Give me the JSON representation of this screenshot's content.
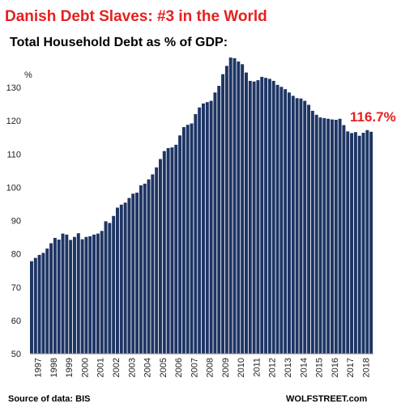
{
  "chart_data": {
    "type": "bar",
    "title": "Danish Debt Slaves: #3 in the World",
    "subtitle": "Total Household Debt as % of GDP:",
    "ylabel": "%",
    "ylim": [
      50,
      140
    ],
    "yticks": [
      50,
      60,
      70,
      80,
      90,
      100,
      110,
      120,
      130
    ],
    "year_labels": [
      "1997",
      "1998",
      "1999",
      "2000",
      "2001",
      "2002",
      "2003",
      "2004",
      "2005",
      "2006",
      "2007",
      "2008",
      "2009",
      "2010",
      "2011",
      "2012",
      "2013",
      "2014",
      "2015",
      "2016",
      "2017",
      "2018"
    ],
    "frequency": "quarterly",
    "first_period": "1997-Q1",
    "last_period": "2018-Q3",
    "values": [
      77.8,
      78.8,
      79.7,
      80.3,
      81.6,
      83.2,
      84.8,
      84.3,
      86.1,
      85.8,
      84.2,
      85.1,
      86.2,
      84.4,
      85.1,
      85.3,
      85.8,
      86.1,
      86.9,
      89.8,
      89.3,
      91.4,
      93.9,
      94.8,
      95.4,
      96.8,
      98.1,
      98.4,
      100.6,
      101.1,
      102.4,
      103.9,
      106.0,
      108.5,
      110.9,
      111.8,
      112.0,
      112.8,
      115.6,
      118.1,
      118.8,
      119.2,
      122.0,
      124.0,
      125.2,
      125.6,
      126.0,
      128.5,
      130.5,
      134.0,
      136.5,
      139.0,
      138.8,
      137.8,
      137.0,
      134.5,
      132.0,
      131.8,
      132.2,
      133.2,
      132.9,
      132.6,
      132.0,
      130.8,
      130.2,
      129.5,
      128.5,
      127.5,
      126.8,
      126.7,
      126.0,
      124.8,
      123.0,
      121.8,
      121.0,
      120.8,
      120.6,
      120.4,
      120.3,
      120.6,
      118.7,
      116.8,
      116.3,
      116.6,
      115.5,
      116.4,
      117.2,
      116.7
    ],
    "annotation": "116.7%",
    "bar_color": "#1e3564",
    "annotation_color": "#e62020",
    "title_color": "#e62020",
    "grid": false
  },
  "footer": {
    "source": "Source of data: BIS",
    "credit": "WOLFSTREET.com"
  }
}
